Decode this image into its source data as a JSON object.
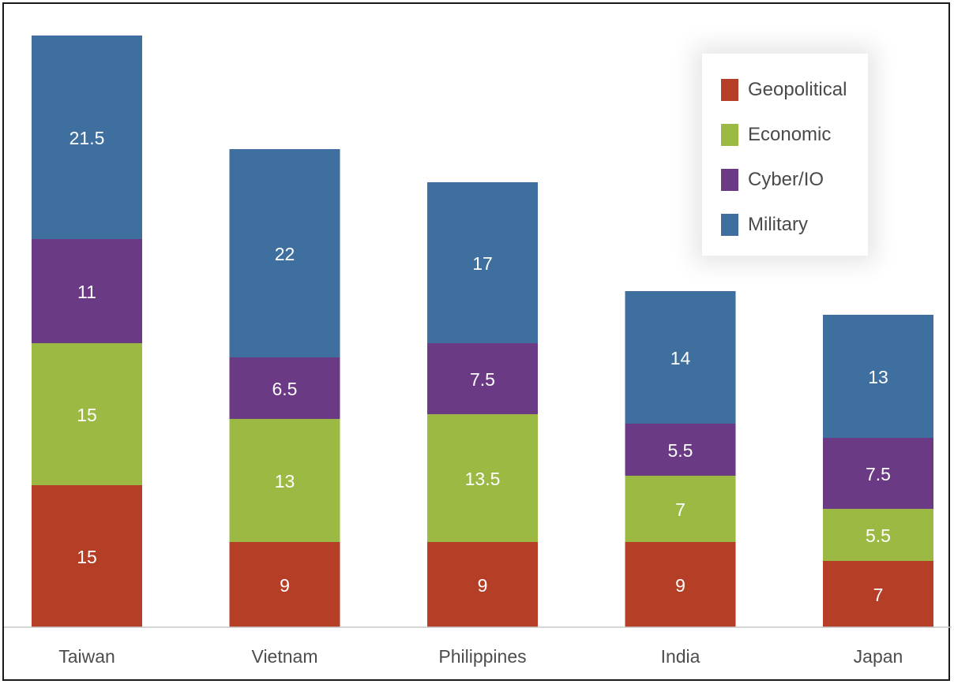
{
  "chart_data": {
    "type": "bar",
    "stacked": true,
    "title": "",
    "xlabel": "",
    "ylabel": "",
    "categories": [
      "Taiwan",
      "Vietnam",
      "Philippines",
      "India",
      "Japan"
    ],
    "series": [
      {
        "name": "Geopolitical",
        "color": "#b53f26",
        "values": [
          15,
          9,
          9,
          9,
          7
        ]
      },
      {
        "name": "Economic",
        "color": "#9cb944",
        "values": [
          15,
          13,
          13.5,
          7,
          5.5
        ]
      },
      {
        "name": "Cyber/IO",
        "color": "#6b3a84",
        "values": [
          11,
          6.5,
          7.5,
          5.5,
          7.5
        ]
      },
      {
        "name": "Military",
        "color": "#3e6f9f",
        "values": [
          21.5,
          22,
          17,
          14,
          13
        ]
      }
    ],
    "data_labels": true,
    "grid": false,
    "legend_position": "top-right"
  }
}
